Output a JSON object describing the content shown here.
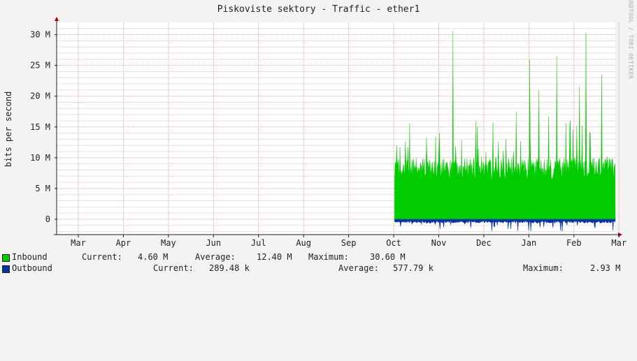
{
  "title": "Piskoviste sektory  - Traffic - ether1",
  "watermark": "RRDTOOL / TOBI OETIKER",
  "chart_data": {
    "type": "area",
    "ylabel": "bits per second",
    "ylim": [
      -2500000,
      32000000
    ],
    "y_ticks": [
      0,
      5000000,
      10000000,
      15000000,
      20000000,
      25000000,
      30000000
    ],
    "y_tick_labels": [
      "0",
      "5 M",
      "10 M",
      "15 M",
      "20 M",
      "25 M",
      "30 M"
    ],
    "x_labels": [
      "Mar",
      "Apr",
      "May",
      "Jun",
      "Jul",
      "Aug",
      "Sep",
      "Oct",
      "Nov",
      "Dec",
      "Jan",
      "Feb",
      "Mar"
    ],
    "x_axis_months": 12.4,
    "grid": true,
    "data_start_month": 7.5,
    "series": [
      {
        "name": "Inbound",
        "color": "#00cc00",
        "current": "4.60 M",
        "average": "12.40 M",
        "maximum": "30.60 M",
        "peaks": [
          {
            "month": 7.55,
            "value": 12000000
          },
          {
            "month": 8.5,
            "value": 14000000
          },
          {
            "month": 8.8,
            "value": 30600000
          },
          {
            "month": 9.3,
            "value": 16000000
          },
          {
            "month": 10.2,
            "value": 17500000
          },
          {
            "month": 10.5,
            "value": 26000000
          },
          {
            "month": 10.7,
            "value": 21000000
          },
          {
            "month": 11.1,
            "value": 26500000
          },
          {
            "month": 11.6,
            "value": 21500000
          },
          {
            "month": 11.75,
            "value": 30300000
          },
          {
            "month": 12.1,
            "value": 23500000
          },
          {
            "month": 12.5,
            "value": 15500000
          },
          {
            "month": 12.85,
            "value": 20000000
          },
          {
            "month": 12.95,
            "value": 12000000
          }
        ]
      },
      {
        "name": "Outbound",
        "color": "#0033aa",
        "current": "289.48 k",
        "average": "577.79 k",
        "maximum": "2.93 M"
      }
    ]
  },
  "legend": {
    "inbound_label": "Inbound",
    "current_label": "Current:",
    "average_label": "Average:",
    "maximum_label": "Maximum:"
  }
}
